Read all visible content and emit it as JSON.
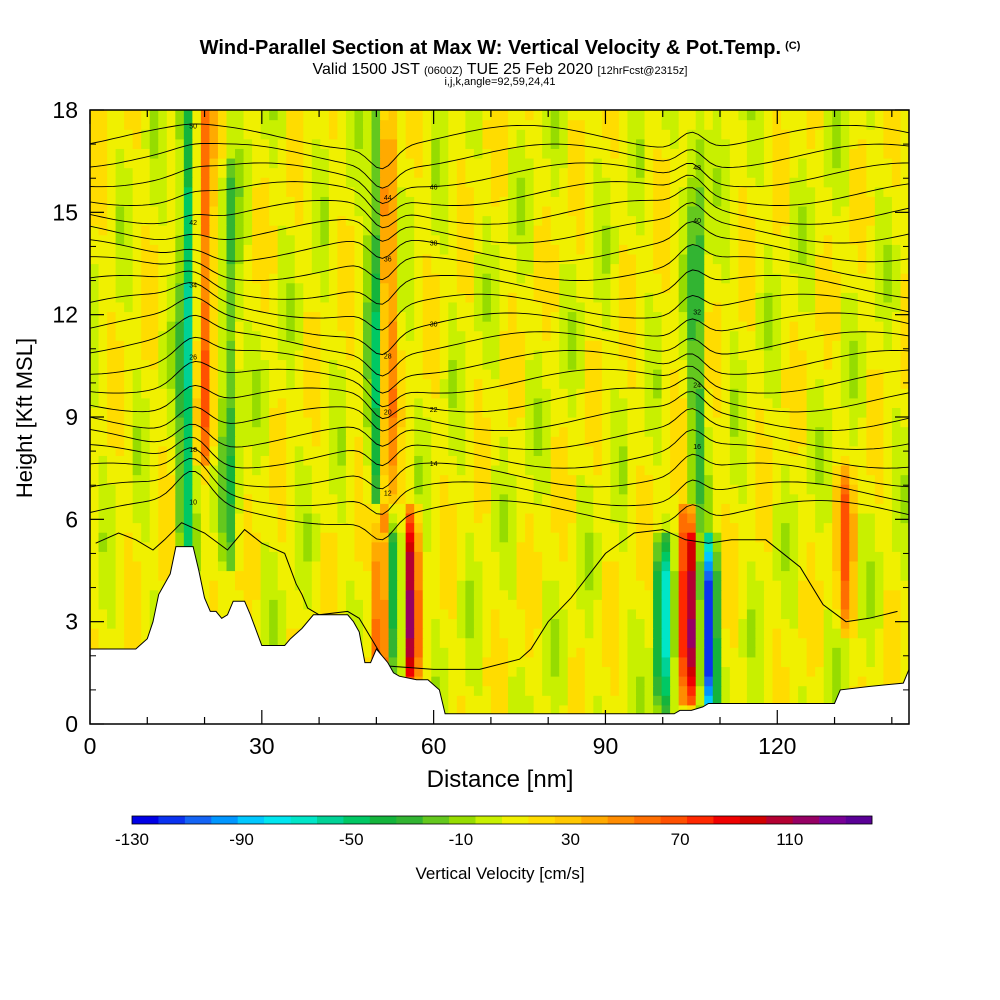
{
  "header": {
    "title": "Wind-Parallel Section at Max W: Vertical Velocity & Pot.Temp.",
    "title_mark": "(C)",
    "valid_a": "Valid 1500 JST",
    "valid_zulu": "(0600Z)",
    "valid_b": "TUE 25 Feb 2020",
    "forecast": "[12hrFcst@2315z]",
    "indices": "i,j,k,angle=92,59,24,41"
  },
  "chart_data": {
    "type": "heatmap",
    "xlabel": "Distance [nm]",
    "ylabel": "Height [Kft MSL]",
    "xlim": [
      0,
      143
    ],
    "ylim": [
      0,
      18
    ],
    "x_ticks": [
      "0",
      "30",
      "60",
      "90",
      "120"
    ],
    "x_tick_values": [
      0,
      30,
      60,
      90,
      120
    ],
    "y_ticks": [
      "0",
      "3",
      "6",
      "9",
      "12",
      "15",
      "18"
    ],
    "y_tick_values": [
      0,
      3,
      6,
      9,
      12,
      15,
      18
    ],
    "grid": false,
    "colorbar": {
      "label": "Vertical Velocity [cm/s]",
      "tick_labels": [
        "-130",
        "-90",
        "-50",
        "-10",
        "30",
        "70",
        "110"
      ],
      "tick_values": [
        -130,
        -90,
        -50,
        -10,
        30,
        70,
        110
      ],
      "bins": [
        -130,
        -120,
        -110,
        -100,
        -90,
        -80,
        -70,
        -60,
        -50,
        -40,
        -30,
        -20,
        -10,
        0,
        10,
        20,
        30,
        40,
        50,
        60,
        70,
        80,
        90,
        100,
        110,
        120,
        130,
        140
      ],
      "colors": [
        "#0000e6",
        "#0a32f0",
        "#1464f5",
        "#0096ff",
        "#00c8ff",
        "#00e6f0",
        "#00e6c8",
        "#00d296",
        "#00c864",
        "#14b43c",
        "#32b432",
        "#64c81e",
        "#96dc00",
        "#c8f000",
        "#f0f000",
        "#ffdc00",
        "#ffc800",
        "#ffaa00",
        "#ff8c00",
        "#ff6e00",
        "#ff5000",
        "#ff2800",
        "#f00000",
        "#d20000",
        "#b40032",
        "#960064",
        "#780096",
        "#5a0096"
      ]
    },
    "contour_variable": "Potential Temperature",
    "contour_labels": [
      "10",
      "12",
      "14",
      "16",
      "18",
      "20",
      "22",
      "24",
      "26",
      "28",
      "30",
      "32",
      "34",
      "36",
      "38",
      "40",
      "42",
      "44",
      "46",
      "48",
      "50"
    ],
    "features": [
      {
        "x": 17,
        "z_from": 5,
        "z_to": 18,
        "w": -70
      },
      {
        "x": 20,
        "z_from": 8,
        "z_to": 18,
        "w": 60
      },
      {
        "x": 24.5,
        "z_from": 5,
        "z_to": 16,
        "w": -40
      },
      {
        "x": 50,
        "z_from": 2.5,
        "z_to": 18,
        "w": -50
      },
      {
        "x": 52,
        "z_from": 6,
        "z_to": 18,
        "w": 50
      },
      {
        "x": 50.5,
        "z_from": 1.5,
        "z_to": 6,
        "w": 100
      },
      {
        "x": 53.5,
        "z_from": 1.5,
        "z_to": 6,
        "w": -50
      },
      {
        "x": 56,
        "z_from": 1.5,
        "z_to": 6,
        "w": 100
      },
      {
        "x": 100,
        "z_from": 0.5,
        "z_to": 5,
        "w": -80
      },
      {
        "x": 104.5,
        "z_from": 1,
        "z_to": 6,
        "w": 110
      },
      {
        "x": 108,
        "z_from": 0.5,
        "z_to": 5,
        "w": -130
      },
      {
        "x": 106,
        "z_from": 6,
        "z_to": 18,
        "w": -40
      },
      {
        "x": 132,
        "z_from": 3,
        "z_to": 7,
        "w": 50
      }
    ],
    "terrain": [
      [
        0,
        2.2
      ],
      [
        8,
        2.2
      ],
      [
        10,
        2.5
      ],
      [
        11,
        3
      ],
      [
        12,
        3.8
      ],
      [
        14,
        4.4
      ],
      [
        15,
        5.2
      ],
      [
        18,
        5.2
      ],
      [
        19,
        4.5
      ],
      [
        20,
        3.7
      ],
      [
        21,
        3.3
      ],
      [
        22,
        3.3
      ],
      [
        23,
        3.1
      ],
      [
        24,
        3.2
      ],
      [
        25,
        3.6
      ],
      [
        27,
        3.6
      ],
      [
        28,
        3.2
      ],
      [
        30,
        2.3
      ],
      [
        34,
        2.3
      ],
      [
        35,
        2.5
      ],
      [
        37,
        2.8
      ],
      [
        39,
        3.2
      ],
      [
        45,
        3.2
      ],
      [
        46,
        3
      ],
      [
        47,
        2.7
      ],
      [
        48,
        1.8
      ],
      [
        49,
        1.8
      ],
      [
        50,
        2.2
      ],
      [
        52,
        1.8
      ],
      [
        53,
        1.5
      ],
      [
        54,
        1.4
      ],
      [
        57,
        1.3
      ],
      [
        59,
        1.3
      ],
      [
        61,
        1
      ],
      [
        62,
        0.3
      ],
      [
        100,
        0.3
      ],
      [
        102,
        0.3
      ],
      [
        103,
        0.4
      ],
      [
        105,
        0.4
      ],
      [
        107,
        0.5
      ],
      [
        108,
        0.6
      ],
      [
        130,
        0.6
      ],
      [
        131,
        1.0
      ],
      [
        136,
        1.1
      ],
      [
        142,
        1.2
      ],
      [
        143,
        1.6
      ]
    ],
    "cold_pool": [
      [
        1,
        5.3
      ],
      [
        5,
        5.6
      ],
      [
        8,
        5.4
      ],
      [
        11,
        5.1
      ],
      [
        13,
        5.4
      ],
      [
        16,
        5.9
      ],
      [
        20,
        5.6
      ],
      [
        24,
        5.1
      ],
      [
        27,
        5.7
      ],
      [
        30,
        5.3
      ],
      [
        34,
        5.0
      ],
      [
        36,
        4.1
      ],
      [
        37,
        3.8
      ],
      [
        38,
        3.4
      ],
      [
        40,
        3.2
      ],
      [
        45,
        3.3
      ],
      [
        47,
        3.1
      ],
      [
        52,
        1.7
      ],
      [
        60,
        1.6
      ],
      [
        68,
        1.6
      ],
      [
        75,
        1.9
      ],
      [
        77,
        2.2
      ],
      [
        80,
        3.0
      ],
      [
        84,
        3.7
      ],
      [
        90,
        5.0
      ],
      [
        95,
        5.6
      ],
      [
        100,
        5.7
      ],
      [
        104,
        5.4
      ],
      [
        108,
        5.3
      ],
      [
        112,
        5.4
      ],
      [
        118,
        5.4
      ],
      [
        124,
        4.6
      ],
      [
        128,
        3.5
      ],
      [
        132,
        3.0
      ],
      [
        136,
        3.1
      ],
      [
        141,
        3.3
      ]
    ]
  }
}
